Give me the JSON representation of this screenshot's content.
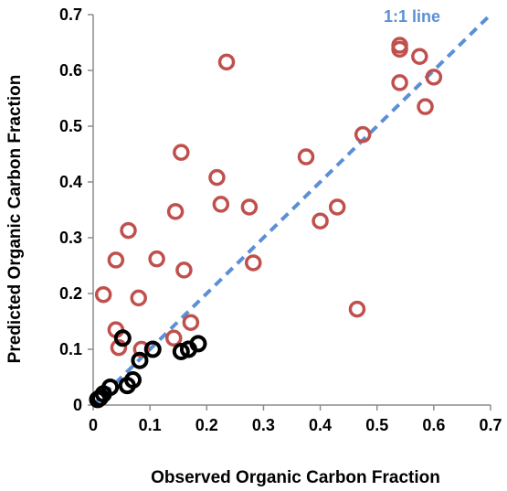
{
  "chart_data": {
    "type": "scatter",
    "xlabel": "Observed Organic Carbon Fraction",
    "ylabel": "Predicted Organic Carbon Fraction",
    "xlim": [
      0,
      0.7
    ],
    "ylim": [
      0,
      0.7
    ],
    "xticks": [
      "0",
      "0.1",
      "0.2",
      "0.3",
      "0.4",
      "0.5",
      "0.6",
      "0.7"
    ],
    "yticks": [
      "0",
      "0.1",
      "0.2",
      "0.3",
      "0.4",
      "0.5",
      "0.6",
      "0.7"
    ],
    "grid": false,
    "marker": "open-circle",
    "reference_line": {
      "label": "1:1 line",
      "from": [
        0,
        0
      ],
      "to": [
        0.7,
        0.7
      ],
      "style": "dashed",
      "color": "#5b8fd6"
    },
    "series": [
      {
        "color": "#c0504d",
        "points": [
          [
            0.235,
            0.615
          ],
          [
            0.54,
            0.645
          ],
          [
            0.54,
            0.638
          ],
          [
            0.575,
            0.625
          ],
          [
            0.6,
            0.588
          ],
          [
            0.54,
            0.578
          ],
          [
            0.585,
            0.535
          ],
          [
            0.475,
            0.485
          ],
          [
            0.155,
            0.453
          ],
          [
            0.375,
            0.445
          ],
          [
            0.218,
            0.408
          ],
          [
            0.225,
            0.36
          ],
          [
            0.275,
            0.355
          ],
          [
            0.145,
            0.347
          ],
          [
            0.43,
            0.355
          ],
          [
            0.4,
            0.33
          ],
          [
            0.062,
            0.313
          ],
          [
            0.04,
            0.26
          ],
          [
            0.112,
            0.262
          ],
          [
            0.16,
            0.242
          ],
          [
            0.282,
            0.255
          ],
          [
            0.018,
            0.198
          ],
          [
            0.08,
            0.192
          ],
          [
            0.465,
            0.172
          ],
          [
            0.04,
            0.135
          ],
          [
            0.172,
            0.148
          ],
          [
            0.142,
            0.12
          ],
          [
            0.045,
            0.103
          ],
          [
            0.085,
            0.1
          ]
        ]
      },
      {
        "color": "#000000",
        "points": [
          [
            0.052,
            0.12
          ],
          [
            0.185,
            0.11
          ],
          [
            0.168,
            0.1
          ],
          [
            0.155,
            0.096
          ],
          [
            0.105,
            0.1
          ],
          [
            0.082,
            0.08
          ],
          [
            0.07,
            0.045
          ],
          [
            0.06,
            0.035
          ],
          [
            0.03,
            0.032
          ],
          [
            0.018,
            0.02
          ],
          [
            0.012,
            0.013
          ],
          [
            0.008,
            0.01
          ]
        ]
      }
    ]
  }
}
